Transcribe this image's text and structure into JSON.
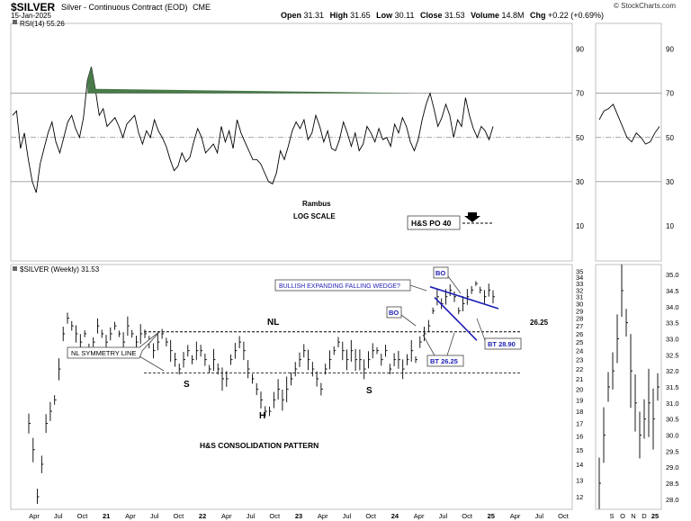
{
  "header": {
    "symbol": "$SILVER",
    "description": "Silver - Continuous Contract (EOD)",
    "exchange": "CME",
    "date": "15-Jan-2025",
    "open_label": "Open",
    "open": "31.31",
    "high_label": "High",
    "high": "31.65",
    "low_label": "Low",
    "low": "30.11",
    "close_label": "Close",
    "close": "31.53",
    "volume_label": "Volume",
    "volume": "14.8M",
    "chg_label": "Chg",
    "chg": "+0.22 (+0.69%)",
    "brand": "© StockCharts.com"
  },
  "chart_data": [
    {
      "type": "line",
      "panel": "RSI",
      "legend": "RSI(14) 55.26",
      "ylim": [
        0,
        100
      ],
      "y_ticks": [
        "90",
        "70",
        "50",
        "30",
        "10"
      ],
      "reference_lines": [
        70,
        50,
        30
      ],
      "grid": false,
      "series": [
        {
          "name": "RSI(14)",
          "values": [
            60,
            62,
            45,
            52,
            40,
            30,
            25,
            38,
            45,
            52,
            57,
            48,
            43,
            50,
            57,
            60,
            54,
            50,
            59,
            76,
            82,
            72,
            60,
            63,
            55,
            57,
            59,
            55,
            50,
            56,
            58,
            60,
            52,
            47,
            53,
            50,
            58,
            53,
            50,
            46,
            40,
            35,
            37,
            43,
            39,
            41,
            48,
            54,
            50,
            43,
            45,
            47,
            43,
            55,
            48,
            53,
            45,
            58,
            52,
            48,
            44,
            40,
            40,
            38,
            34,
            30,
            29,
            34,
            44,
            40,
            46,
            53,
            57,
            54,
            58,
            49,
            52,
            60,
            55,
            48,
            53,
            45,
            44,
            49,
            57,
            52,
            46,
            52,
            44,
            47,
            55,
            52,
            48,
            54,
            49,
            50,
            46,
            56,
            52,
            59,
            55,
            48,
            44,
            49,
            58,
            65,
            70,
            63,
            55,
            59,
            65,
            60,
            50,
            58,
            55,
            68,
            60,
            54,
            50,
            55,
            53,
            49,
            55
          ]
        },
        {
          "name": "RSI(14) zoom",
          "values": [
            58,
            62,
            63,
            65,
            60,
            55,
            50,
            48,
            52,
            50,
            47,
            48,
            52,
            55
          ]
        }
      ],
      "annotations": [
        "Rambus",
        "LOG SCALE",
        "H&S PO 40"
      ]
    },
    {
      "type": "line",
      "panel": "Price",
      "legend": "$SILVER (Weekly) 31.53",
      "y_ticks": [
        "35",
        "34",
        "33",
        "32",
        "31",
        "30",
        "29",
        "28",
        "27",
        "26",
        "25",
        "24",
        "23",
        "22",
        "21",
        "20",
        "19",
        "18",
        "17",
        "16",
        "15",
        "14",
        "13",
        "12"
      ],
      "zoom_y_ticks": [
        "35.0",
        "34.5",
        "34.0",
        "33.5",
        "33.0",
        "32.5",
        "32.0",
        "31.5",
        "31.0",
        "30.5",
        "30.0",
        "29.5",
        "29.0",
        "28.5",
        "28.0"
      ],
      "x_ticks": [
        "Apr",
        "Jul",
        "Oct",
        "21",
        "Apr",
        "Jul",
        "Oct",
        "22",
        "Apr",
        "Jul",
        "Oct",
        "23",
        "Apr",
        "Jul",
        "Oct",
        "24",
        "Apr",
        "Jul",
        "Oct",
        "25",
        "Apr",
        "Jul",
        "Oct"
      ],
      "zoom_x_ticks": [
        "S",
        "O",
        "N",
        "D",
        "25"
      ],
      "series": [
        {
          "name": "$SILVER weekly close",
          "values": [
            17,
            15,
            12,
            14,
            17,
            18,
            19,
            22,
            26,
            28,
            27,
            26,
            25,
            26,
            24,
            25,
            27,
            26,
            25,
            26,
            27,
            26,
            25,
            27,
            26,
            25,
            26,
            26,
            25,
            24,
            25,
            26,
            25,
            24,
            23,
            22,
            23,
            24,
            23,
            24,
            24,
            23,
            22,
            23,
            22,
            21,
            21,
            23,
            24,
            25,
            24,
            22,
            21,
            20,
            19,
            18,
            18,
            19,
            20,
            19,
            20,
            21,
            22,
            23,
            24,
            23,
            22,
            21,
            20,
            22,
            23,
            24,
            25,
            24,
            23,
            24,
            23,
            23,
            22,
            23,
            24,
            24,
            23,
            24,
            22,
            23,
            23,
            22,
            23,
            24,
            23,
            25,
            26,
            27,
            29,
            31,
            30,
            31,
            32,
            31,
            29,
            30,
            31,
            32,
            33,
            32,
            31,
            32,
            31
          ]
        },
        {
          "name": "zoom",
          "values": [
            28.5,
            30.0,
            31.5,
            32.0,
            33.0,
            34.5,
            33.5,
            32.0,
            31.0,
            30.0,
            30.5,
            31.0,
            30.5,
            31.5
          ]
        }
      ],
      "annotations": {
        "nl": "NL",
        "nl_value": "26.25",
        "nl_symmetry": "NL SYMMETRY LINE",
        "left_shoulder": "S",
        "head": "H",
        "right_shoulder": "S",
        "pattern": "H&S CONSOLIDATION PATTERN",
        "wedge": "BULLISH EXPANDING FALLING WEDGE?",
        "bo1": "BO",
        "bo2": "BO",
        "bt1": "BT 26.25",
        "bt2": "BT 28.90"
      }
    }
  ],
  "colors": {
    "rsi_fill": "#4a7a4a",
    "annotation_blue": "#1e1eb4",
    "line": "#000000",
    "ref_line": "#888888"
  }
}
